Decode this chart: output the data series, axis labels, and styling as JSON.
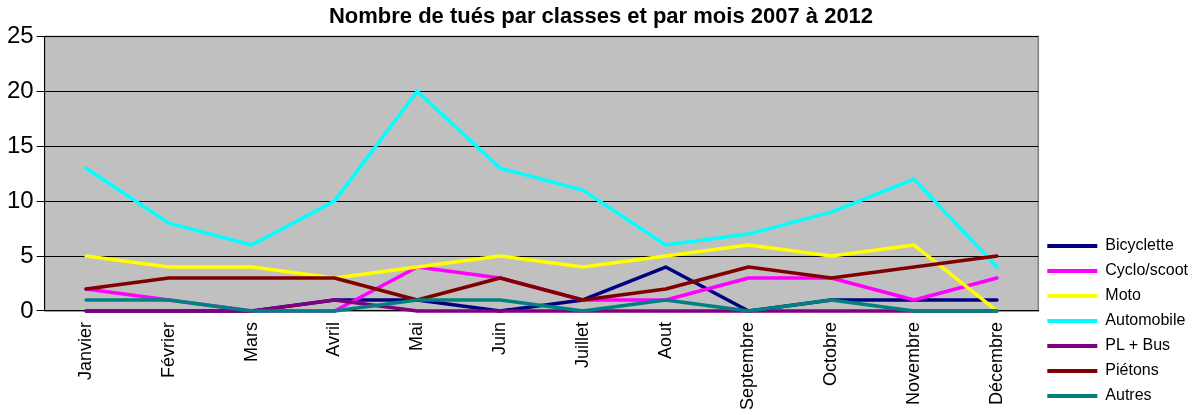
{
  "chart_data": {
    "type": "line",
    "title": "Nombre de tués par classes et par mois 2007 à 2012",
    "categories": [
      "Janvier",
      "Février",
      "Mars",
      "Avril",
      "Mai",
      "Juin",
      "Juillet",
      "Aout",
      "Septembre",
      "Octobre",
      "Novembre",
      "Décembre"
    ],
    "series": [
      {
        "name": "Bicyclette",
        "color": "#000080",
        "values": [
          0,
          0,
          0,
          1,
          1,
          0,
          1,
          4,
          0,
          1,
          1,
          1
        ]
      },
      {
        "name": "Cyclo/scoot",
        "color": "#ff00ff",
        "values": [
          2,
          1,
          0,
          0,
          4,
          3,
          1,
          1,
          3,
          3,
          1,
          3
        ]
      },
      {
        "name": "Moto",
        "color": "#ffff00",
        "values": [
          5,
          4,
          4,
          3,
          4,
          5,
          4,
          5,
          6,
          5,
          6,
          0
        ]
      },
      {
        "name": "Automobile",
        "color": "#00ffff",
        "values": [
          13,
          8,
          6,
          10,
          20,
          13,
          11,
          6,
          7,
          9,
          12,
          4
        ]
      },
      {
        "name": "PL + Bus",
        "color": "#800080",
        "values": [
          0,
          0,
          0,
          1,
          0,
          0,
          0,
          0,
          0,
          0,
          0,
          0
        ]
      },
      {
        "name": "Piétons",
        "color": "#800000",
        "values": [
          2,
          3,
          3,
          3,
          1,
          3,
          1,
          2,
          4,
          3,
          4,
          5
        ]
      },
      {
        "name": "Autres",
        "color": "#008080",
        "values": [
          1,
          1,
          0,
          0,
          1,
          1,
          0,
          1,
          0,
          1,
          0,
          0
        ]
      }
    ],
    "ylim": [
      0,
      25
    ],
    "yticks": [
      0,
      5,
      10,
      15,
      20,
      25
    ],
    "grid": "y",
    "legend": "bottom right",
    "marker": "none",
    "line_style": "solid"
  }
}
